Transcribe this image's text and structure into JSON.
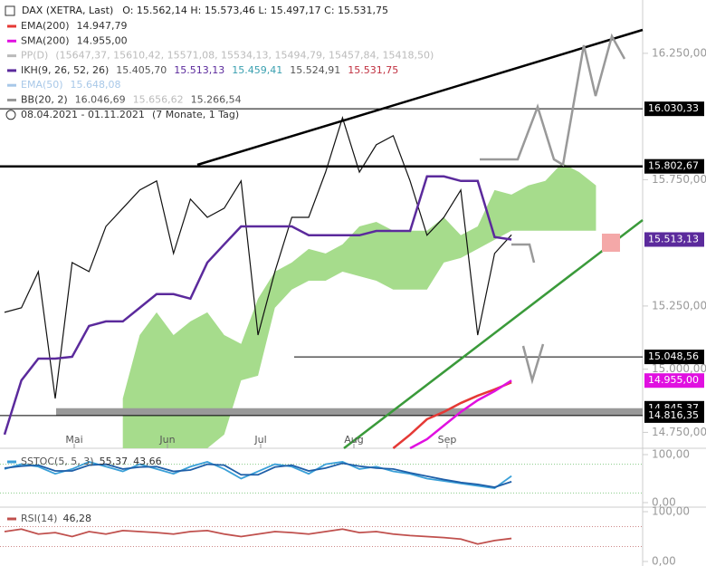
{
  "chart_data": {
    "type": "line",
    "title": "DAX (XETRA, Last)",
    "ohlc": "O: 15.562,14   H: 15.573,46   L: 15.497,17   C: 15.531,75",
    "legend": [
      {
        "label": "EMA(200)",
        "color": "#e53935",
        "values": [
          {
            "text": "14.947,79",
            "color": "#333333"
          }
        ]
      },
      {
        "label": "SMA(200)",
        "color": "#e010e0",
        "values": [
          {
            "text": "14.955,00",
            "color": "#333333"
          }
        ]
      },
      {
        "label": "PP(D)",
        "color": "#bbbbbb",
        "values": [
          {
            "text": "(15647,37, 15610,42, 15571,08, 15534,13, 15494,79, 15457,84, 15418,50)",
            "color": "#bbbbbb"
          }
        ]
      },
      {
        "label": "IKH(9, 26, 52, 26)",
        "color": "#5b2a9c",
        "values": [
          {
            "text": "15.405,70",
            "color": "#555555"
          },
          {
            "text": "15.513,13",
            "color": "#5b2a9c"
          },
          {
            "text": "15.459,41",
            "color": "#3aa0b0"
          },
          {
            "text": "15.524,91",
            "color": "#555555"
          },
          {
            "text": "15.531,75",
            "color": "#c03040"
          }
        ]
      },
      {
        "label": "EMA(50)",
        "color": "#a8c8e8",
        "values": [
          {
            "text": "15.648,08",
            "color": "#a8c8e8"
          }
        ]
      },
      {
        "label": "BB(20, 2)",
        "color": "#999999",
        "values": [
          {
            "text": "16.046,69",
            "color": "#555555"
          },
          {
            "text": "15.656,62",
            "color": "#bbbbbb"
          },
          {
            "text": "15.266,54",
            "color": "#555555"
          }
        ]
      }
    ],
    "date_range": "08.04.2021 - 01.11.2021",
    "date_span": "(7 Monate, 1 Tag)",
    "months": [
      "Mai",
      "Jun",
      "Jul",
      "Aug",
      "Sep"
    ],
    "ylim": [
      14687,
      16461
    ],
    "yticks": [
      {
        "value": 16250,
        "label": "16.250,00"
      },
      {
        "value": 15750,
        "label": "15.750,00"
      },
      {
        "value": 15250,
        "label": "15.250,00"
      },
      {
        "value": 15000,
        "label": "15.000,00"
      },
      {
        "value": 14750,
        "label": "14.750,00"
      }
    ],
    "price_labels": [
      {
        "value": 16030.33,
        "label": "16.030,33",
        "bg": "#000000",
        "line": "thin"
      },
      {
        "value": 15802.67,
        "label": "15.802,67",
        "bg": "#000000",
        "line": "thick"
      },
      {
        "value": 15513.13,
        "label": "15.513,13",
        "bg": "#5b2a9c"
      },
      {
        "value": 15048.56,
        "label": "15.048,56",
        "bg": "#000000",
        "line": "thin"
      },
      {
        "value": 14955,
        "label": "14.955,00",
        "bg": "#e010e0"
      },
      {
        "value": 14845.37,
        "label": "14.845,37",
        "bg": "#000000",
        "line": "band"
      },
      {
        "value": 14816.35,
        "label": "14.816,35",
        "bg": "#000000",
        "line": "thin"
      }
    ],
    "series": [
      {
        "name": "DAX",
        "color": "#111111",
        "values": [
          15225,
          15243,
          15386,
          14884,
          15422,
          15386,
          15565,
          15637,
          15709,
          15745,
          15458,
          15673,
          15601,
          15637,
          15745,
          15135,
          15386,
          15601,
          15601,
          15780,
          15995,
          15780,
          15888,
          15924,
          15745,
          15530,
          15601,
          15709,
          15135,
          15458,
          15531.75,
          null,
          null,
          null,
          null,
          null
        ]
      },
      {
        "name": "IKH Kijun",
        "color": "#5b2a9c",
        "values": [
          14741,
          14956,
          15042,
          15042,
          15049,
          15171,
          15189,
          15189,
          15243,
          15297,
          15297,
          15279,
          15422,
          15494,
          15565,
          15565,
          15565,
          15565,
          15530,
          15530,
          15530,
          15530,
          15547,
          15547,
          15547,
          15763,
          15763,
          15745,
          15745,
          15523,
          15513.13,
          null,
          null,
          null,
          null,
          null
        ]
      },
      {
        "name": "EMA(200)",
        "color": "#e53935",
        "values": [
          null,
          null,
          null,
          null,
          null,
          null,
          null,
          null,
          null,
          null,
          null,
          null,
          null,
          null,
          null,
          null,
          null,
          null,
          null,
          null,
          null,
          null,
          null,
          14687,
          14741,
          14802,
          14831,
          14866,
          14895,
          14920,
          14947.79,
          null,
          null,
          null,
          null,
          null
        ]
      },
      {
        "name": "SMA(200)",
        "color": "#e010e0",
        "values": [
          null,
          null,
          null,
          null,
          null,
          null,
          null,
          null,
          null,
          null,
          null,
          null,
          null,
          null,
          null,
          null,
          null,
          null,
          null,
          null,
          null,
          null,
          null,
          null,
          14687,
          14723,
          14777,
          14831,
          14877,
          14913,
          14955,
          null,
          null,
          null,
          null,
          null
        ]
      }
    ],
    "cloud": {
      "color": "#a6dc8c",
      "upper": [
        null,
        null,
        null,
        null,
        null,
        null,
        null,
        14884,
        15135,
        15225,
        15135,
        15189,
        15225,
        15135,
        15100,
        15279,
        15386,
        15422,
        15476,
        15458,
        15494,
        15565,
        15583,
        15548,
        15548,
        15548,
        15601,
        15530,
        15565,
        15709,
        15691,
        15727,
        15745,
        15816,
        15780,
        15727
      ],
      "lower": [
        null,
        null,
        null,
        null,
        null,
        null,
        null,
        14687,
        14687,
        14687,
        14687,
        14687,
        14687,
        14741,
        14956,
        14974,
        15243,
        15315,
        15350,
        15350,
        15386,
        15368,
        15350,
        15315,
        15315,
        15315,
        15422,
        15440,
        15476,
        15512,
        15548,
        15548,
        15548,
        15548,
        15548,
        15548
      ]
    },
    "stoch": {
      "label": "SSTOC(5, 5, 3)",
      "ylim": [
        0,
        100
      ],
      "yticks": [
        {
          "value": 100,
          "label": "100,00"
        },
        {
          "value": 0,
          "label": "0,00"
        }
      ],
      "series": [
        {
          "name": "55,37",
          "color": "#3aa0d8",
          "values": [
            70,
            80,
            75,
            60,
            70,
            85,
            75,
            65,
            80,
            70,
            60,
            75,
            85,
            70,
            50,
            65,
            80,
            75,
            60,
            80,
            85,
            70,
            75,
            65,
            60,
            50,
            45,
            40,
            35,
            30,
            55.37
          ]
        },
        {
          "name": "43,66",
          "color": "#1f5fa8",
          "values": [
            72,
            76,
            78,
            66,
            66,
            78,
            80,
            70,
            74,
            75,
            65,
            68,
            80,
            78,
            58,
            58,
            74,
            78,
            66,
            72,
            82,
            76,
            72,
            70,
            62,
            55,
            48,
            42,
            38,
            32,
            43.66
          ]
        }
      ]
    },
    "rsi": {
      "label": "RSI(14)",
      "ylim": [
        0,
        100
      ],
      "yticks": [
        {
          "value": 100,
          "label": "100,00"
        },
        {
          "value": 0,
          "label": "0,00"
        }
      ],
      "series": [
        {
          "name": "46,28",
          "color": "#c0504d",
          "values": [
            60,
            65,
            55,
            58,
            50,
            60,
            55,
            62,
            60,
            58,
            55,
            60,
            62,
            55,
            50,
            55,
            60,
            58,
            55,
            60,
            65,
            58,
            60,
            55,
            52,
            50,
            48,
            45,
            35,
            42,
            46.28
          ]
        }
      ]
    }
  }
}
